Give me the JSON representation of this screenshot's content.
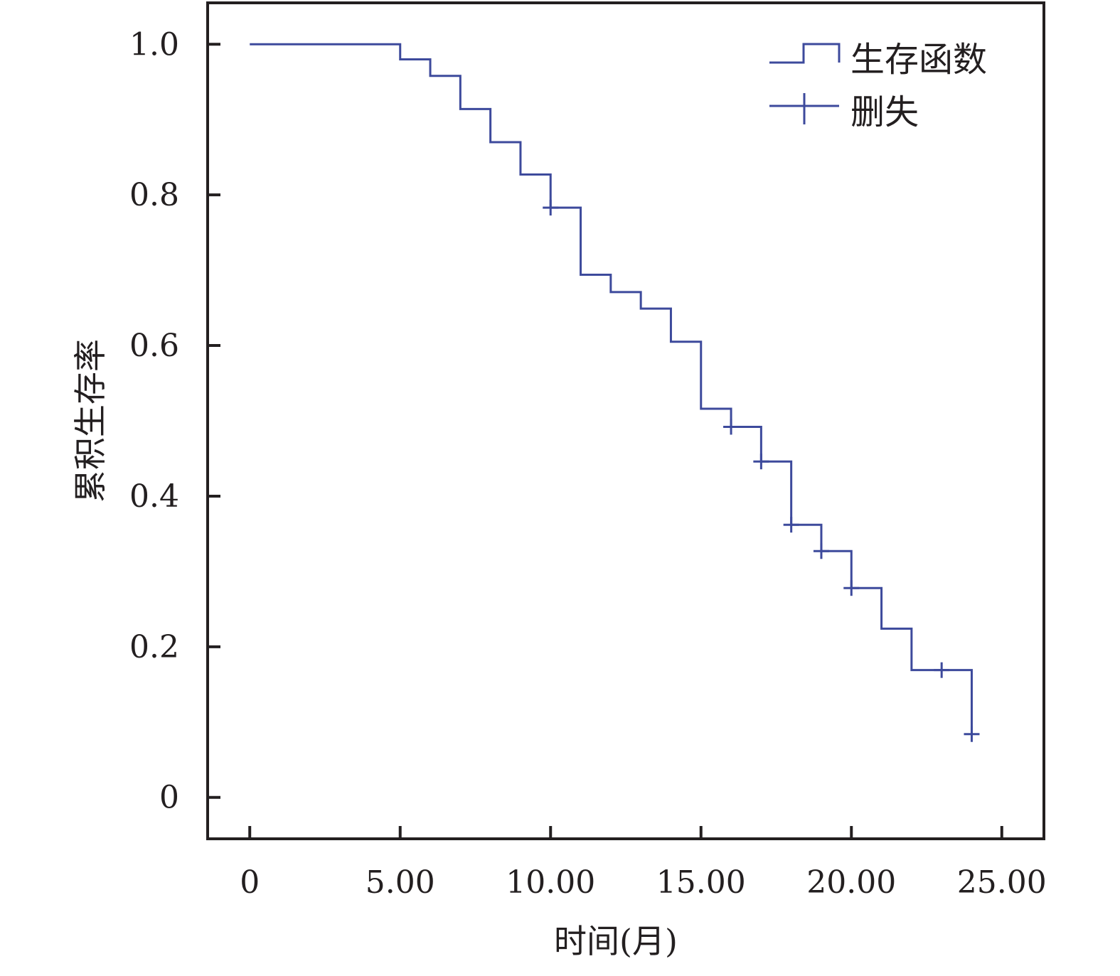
{
  "chart_data": {
    "type": "line",
    "subtype": "kaplan-meier-step",
    "title": "",
    "xlabel": "时间(月)",
    "ylabel": "累积生存率",
    "xlim": [
      -1.4,
      26.4
    ],
    "ylim": [
      -0.055,
      1.055
    ],
    "x_ticks": [
      0,
      5,
      10,
      15,
      20,
      25
    ],
    "x_tick_labels": [
      "0",
      "5.00",
      "10.00",
      "15.00",
      "20.00",
      "25.00"
    ],
    "y_ticks": [
      0,
      0.2,
      0.4,
      0.6,
      0.8,
      1.0
    ],
    "y_tick_labels": [
      "0",
      "0.2",
      "0.4",
      "0.6",
      "0.8",
      "1.0"
    ],
    "grid": false,
    "legend_position": "top-right",
    "color": "#3d4a9c",
    "series": [
      {
        "name": "生存函数",
        "kind": "step",
        "points": [
          [
            0,
            1.0
          ],
          [
            5,
            0.98
          ],
          [
            6,
            0.958
          ],
          [
            7,
            0.914
          ],
          [
            8,
            0.87
          ],
          [
            9,
            0.827
          ],
          [
            10,
            0.783
          ],
          [
            11,
            0.694
          ],
          [
            12,
            0.671
          ],
          [
            13,
            0.649
          ],
          [
            14,
            0.605
          ],
          [
            15,
            0.516
          ],
          [
            16,
            0.492
          ],
          [
            17,
            0.446
          ],
          [
            18,
            0.362
          ],
          [
            19,
            0.327
          ],
          [
            20,
            0.278
          ],
          [
            21,
            0.224
          ],
          [
            22,
            0.169
          ],
          [
            24,
            0.084
          ]
        ]
      },
      {
        "name": "删失",
        "kind": "censor-marks",
        "points": [
          [
            10,
            0.783
          ],
          [
            16,
            0.492
          ],
          [
            17,
            0.446
          ],
          [
            18,
            0.362
          ],
          [
            19,
            0.327
          ],
          [
            20,
            0.278
          ],
          [
            23,
            0.169
          ],
          [
            24,
            0.084
          ]
        ]
      }
    ]
  }
}
